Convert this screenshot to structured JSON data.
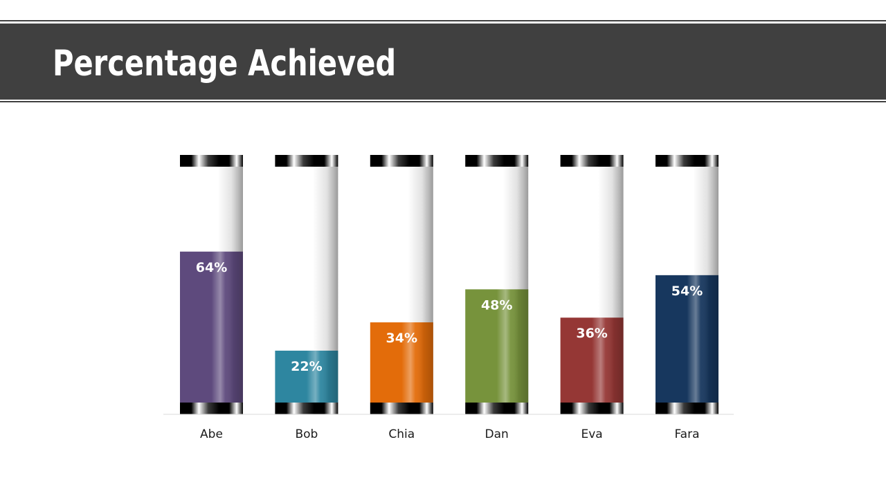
{
  "slide": {
    "title": "Percentage Achieved",
    "header_color": "#404040"
  },
  "chart_data": {
    "type": "bar",
    "title": "",
    "xlabel": "",
    "ylabel": "",
    "ylim": [
      0,
      100
    ],
    "grid": false,
    "legend": "none",
    "categories": [
      "Abe",
      "Bob",
      "Chia",
      "Dan",
      "Eva",
      "Fara"
    ],
    "values": [
      64,
      22,
      34,
      48,
      36,
      54
    ],
    "labels": [
      "64%",
      "22%",
      "34%",
      "48%",
      "36%",
      "54%"
    ],
    "colors": [
      "#5e4a7d",
      "#2e86a0",
      "#e36c0a",
      "#77933c",
      "#953735",
      "#17375e"
    ],
    "background_fill": "#ffffff"
  }
}
